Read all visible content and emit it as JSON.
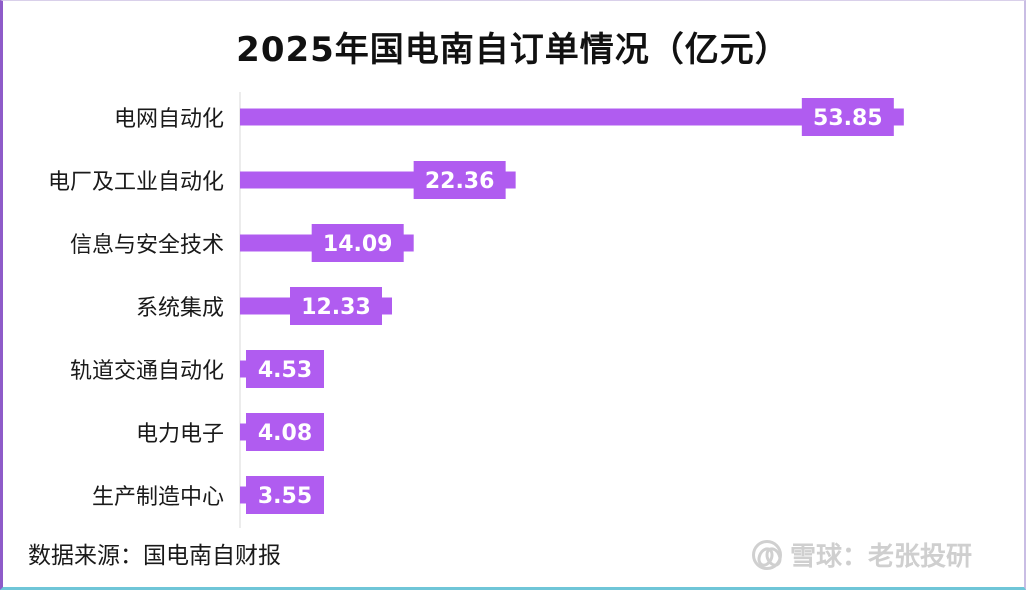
{
  "chart_data": {
    "type": "bar",
    "orientation": "horizontal",
    "title": "2025年国电南自订单情况（亿元）",
    "categories": [
      "电网自动化",
      "电厂及工业自动化",
      "信息与安全技术",
      "系统集成",
      "轨道交通自动化",
      "电力电子",
      "生产制造中心"
    ],
    "values": [
      53.85,
      22.36,
      14.09,
      12.33,
      4.53,
      4.08,
      3.55
    ],
    "value_labels": [
      "53.85",
      "22.36",
      "14.09",
      "12.33",
      "4.53",
      "4.08",
      "3.55"
    ],
    "xlim": [
      0,
      55
    ],
    "grid": false,
    "legend": "none",
    "bar_color": "#b05cf0",
    "label_text_color": "#ffffff"
  },
  "source": "数据来源：国电南自财报",
  "watermark": "雪球：老张投研"
}
